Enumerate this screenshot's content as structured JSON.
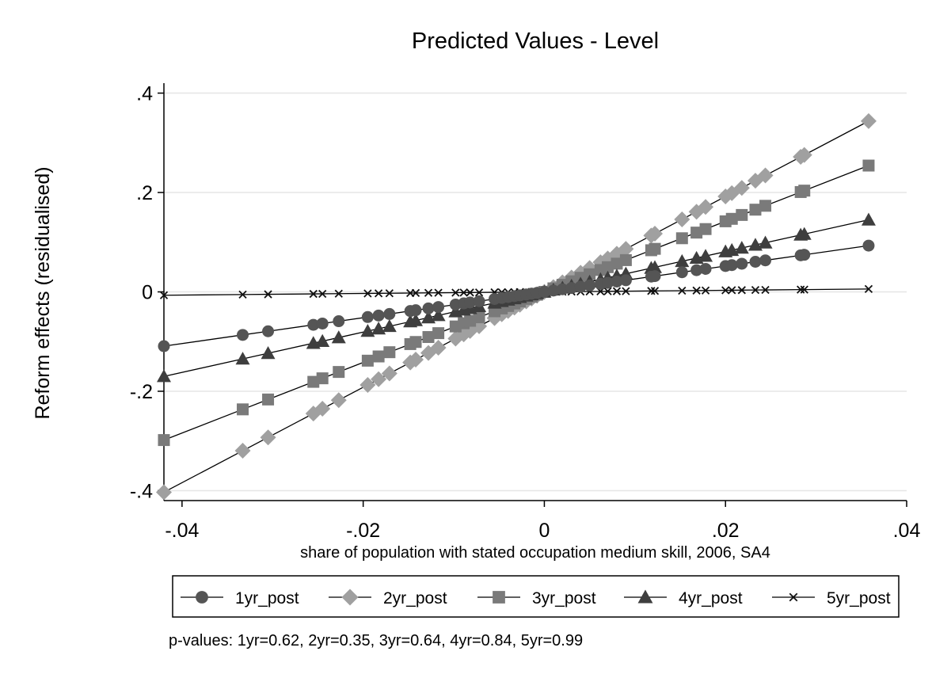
{
  "chart_data": {
    "type": "line",
    "title": "Predicted Values - Level",
    "xlabel": "share of population with stated occupation medium skill, 2006, SA4",
    "ylabel": "Reform effects (residualised)",
    "xlim": [
      -0.042,
      0.04
    ],
    "ylim": [
      -0.42,
      0.42
    ],
    "xticks": [
      -0.04,
      -0.02,
      0,
      0.02,
      0.04
    ],
    "xtick_labels": [
      "-.04",
      "-.02",
      "0",
      ".02",
      ".04"
    ],
    "yticks": [
      -0.4,
      -0.2,
      0,
      0.2,
      0.4
    ],
    "ytick_labels": [
      "-.4",
      "-.2",
      "0",
      ".2",
      ".4"
    ],
    "grid": true,
    "legend_position": "bottom",
    "x": [
      -0.042,
      -0.0333,
      -0.0305,
      -0.0255,
      -0.0245,
      -0.0227,
      -0.0195,
      -0.0183,
      -0.0171,
      -0.0148,
      -0.0142,
      -0.0128,
      -0.0117,
      -0.0098,
      -0.0089,
      -0.0082,
      -0.0072,
      -0.0055,
      -0.0047,
      -0.004,
      -0.0033,
      -0.0027,
      -0.002,
      -0.0014,
      -0.0008,
      0.0,
      0.001,
      0.002,
      0.003,
      0.004,
      0.005,
      0.0062,
      0.007,
      0.008,
      0.009,
      0.0118,
      0.0122,
      0.0152,
      0.0168,
      0.0178,
      0.02,
      0.0207,
      0.0218,
      0.0233,
      0.0244,
      0.0283,
      0.0287,
      0.0358
    ],
    "series": [
      {
        "name": "1yr_post",
        "marker": "circle",
        "color": "#555555",
        "slope": 2.6
      },
      {
        "name": "2yr_post",
        "marker": "diamond",
        "color": "#a0a0a0",
        "slope": 9.6
      },
      {
        "name": "3yr_post",
        "marker": "square",
        "color": "#7a7a7a",
        "slope": 7.1
      },
      {
        "name": "4yr_post",
        "marker": "triangle",
        "color": "#3e3e3e",
        "slope": 4.05
      },
      {
        "name": "5yr_post",
        "marker": "x",
        "color": "#111111",
        "slope": 0.16
      }
    ],
    "note": "p-values: 1yr=0.62,  2yr=0.35,  3yr=0.64,  4yr=0.84,  5yr=0.99"
  }
}
